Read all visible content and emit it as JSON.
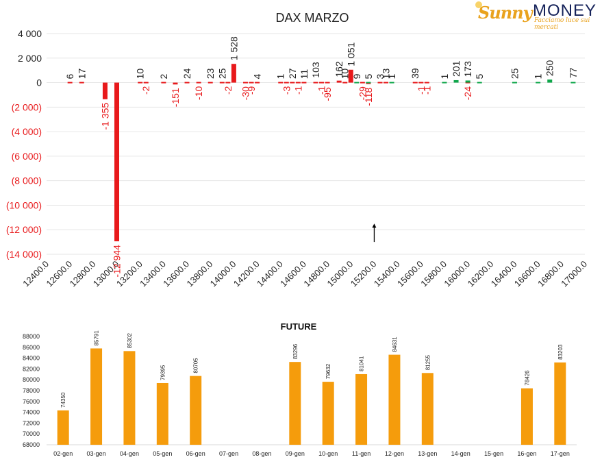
{
  "brand": {
    "name_part1": "Sunny",
    "name_part2": "MONEY",
    "tagline": "Facciamo luce sui mercati",
    "colors": {
      "gold": "#e9a21d",
      "navy": "#16235a"
    }
  },
  "colors": {
    "negative": "#e8191b",
    "positive": "#0ea64a",
    "future": "#f59c0c",
    "grid": "#e6e6e6",
    "axis_text": "#333333",
    "negative_text": "#e8191b"
  },
  "chart_data": [
    {
      "type": "bar",
      "title": "DAX MARZO",
      "xlim": [
        12400,
        17000
      ],
      "xticks": [
        "12400.0",
        "12600.0",
        "12800.0",
        "13000.0",
        "13200.0",
        "13400.0",
        "13600.0",
        "13800.0",
        "14000.0",
        "14200.0",
        "14400.0",
        "14600.0",
        "14800.0",
        "15000.0",
        "15200.0",
        "15400.0",
        "15600.0",
        "15800.0",
        "16000.0",
        "16200.0",
        "16400.0",
        "16600.0",
        "16800.0",
        "17000.0"
      ],
      "ylim": [
        -14000,
        4000
      ],
      "yticks": [
        "4 000",
        "2 000",
        "0",
        "(2 000)",
        "(4 000)",
        "(6 000)",
        "(8 000)",
        "(10 000)",
        "(12 000)",
        "(14 000)"
      ],
      "grid": true,
      "series": [
        {
          "color": "#e8191b",
          "points": [
            {
              "x": 12600,
              "y": 6,
              "label": "6"
            },
            {
              "x": 12700,
              "y": 17,
              "label": "17"
            },
            {
              "x": 12900,
              "y": -1355,
              "label": "-1 355"
            },
            {
              "x": 13000,
              "y": -12944,
              "label": "-12 944"
            },
            {
              "x": 13200,
              "y": 10,
              "label": "10"
            },
            {
              "x": 13250,
              "y": -2,
              "label": "-2"
            },
            {
              "x": 13400,
              "y": 2,
              "label": "2"
            },
            {
              "x": 13500,
              "y": -151,
              "label": "-151"
            },
            {
              "x": 13600,
              "y": 24,
              "label": "24"
            },
            {
              "x": 13700,
              "y": -10,
              "label": "-10"
            },
            {
              "x": 13800,
              "y": 23,
              "label": "23"
            },
            {
              "x": 13900,
              "y": 25,
              "label": "25"
            },
            {
              "x": 13950,
              "y": -2,
              "label": "-2"
            },
            {
              "x": 14000,
              "y": 1528,
              "label": "1 528"
            },
            {
              "x": 14100,
              "y": -30,
              "label": "-30"
            },
            {
              "x": 14150,
              "y": -9,
              "label": "-9"
            },
            {
              "x": 14200,
              "y": 4,
              "label": "4"
            },
            {
              "x": 14400,
              "y": 1,
              "label": "1"
            },
            {
              "x": 14450,
              "y": -3,
              "label": "-3"
            },
            {
              "x": 14500,
              "y": 27,
              "label": "27"
            },
            {
              "x": 14550,
              "y": -1,
              "label": "-1"
            },
            {
              "x": 14600,
              "y": 11,
              "label": "11"
            },
            {
              "x": 14700,
              "y": 103,
              "label": "103"
            },
            {
              "x": 14750,
              "y": -1,
              "label": "-1"
            },
            {
              "x": 14800,
              "y": -95,
              "label": "-95"
            },
            {
              "x": 14900,
              "y": 162,
              "label": "162"
            },
            {
              "x": 14950,
              "y": 10,
              "label": "10"
            },
            {
              "x": 15000,
              "y": 1051,
              "label": "1 051"
            },
            {
              "x": 15100,
              "y": -29,
              "label": "-29"
            },
            {
              "x": 15150,
              "y": -118,
              "label": "-118"
            },
            {
              "x": 15250,
              "y": 3,
              "label": "3"
            },
            {
              "x": 15300,
              "y": 13,
              "label": "13"
            },
            {
              "x": 15550,
              "y": 39,
              "label": "39"
            },
            {
              "x": 15600,
              "y": -1,
              "label": "-1"
            },
            {
              "x": 15650,
              "y": -1,
              "label": "-1"
            },
            {
              "x": 16000,
              "y": -24,
              "label": "-24"
            }
          ]
        },
        {
          "color": "#0ea64a",
          "points": [
            {
              "x": 15050,
              "y": 9,
              "label": "9"
            },
            {
              "x": 15150,
              "y": 5,
              "label": "5"
            },
            {
              "x": 15350,
              "y": 1,
              "label": "1"
            },
            {
              "x": 15800,
              "y": 1,
              "label": "1"
            },
            {
              "x": 15900,
              "y": 201,
              "label": "201"
            },
            {
              "x": 16000,
              "y": 173,
              "label": "173"
            },
            {
              "x": 16100,
              "y": 5,
              "label": "5"
            },
            {
              "x": 16400,
              "y": 25,
              "label": "25"
            },
            {
              "x": 16600,
              "y": 1,
              "label": "1"
            },
            {
              "x": 16700,
              "y": 250,
              "label": "250"
            },
            {
              "x": 16900,
              "y": 77,
              "label": "77"
            }
          ]
        }
      ],
      "annotations": [
        {
          "type": "arrow",
          "x": 15200,
          "y_from": -13000,
          "y_to": -11500
        }
      ]
    },
    {
      "type": "bar",
      "title": "FUTURE",
      "categories": [
        "02-gen",
        "03-gen",
        "04-gen",
        "05-gen",
        "06-gen",
        "07-gen",
        "08-gen",
        "09-gen",
        "10-gen",
        "11-gen",
        "12-gen",
        "13-gen",
        "14-gen",
        "15-gen",
        "16-gen",
        "17-gen"
      ],
      "values": [
        74350,
        85791,
        85302,
        79395,
        80705,
        null,
        null,
        83296,
        79632,
        81041,
        84631,
        81255,
        null,
        null,
        78426,
        83203
      ],
      "ylim": [
        68000,
        88000
      ],
      "yticks": [
        "88000",
        "86000",
        "84000",
        "82000",
        "80000",
        "78000",
        "76000",
        "74000",
        "72000",
        "70000",
        "68000"
      ],
      "color": "#f59c0c",
      "grid": false
    }
  ]
}
